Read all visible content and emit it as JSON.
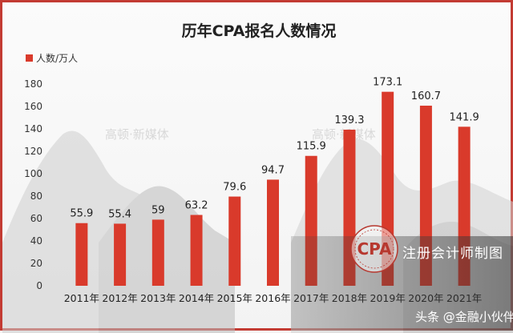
{
  "chart_data": {
    "type": "bar",
    "title": "历年CPA报名人数情况",
    "categories": [
      "2011年",
      "2012年",
      "2013年",
      "2014年",
      "2015年",
      "2016年",
      "2017年",
      "2018年",
      "2019年",
      "2020年",
      "2021年"
    ],
    "series": [
      {
        "name": "人数/万人",
        "values": [
          55.9,
          55.4,
          59,
          63.2,
          79.6,
          94.7,
          115.9,
          139.3,
          173.1,
          160.7,
          141.9
        ]
      }
    ],
    "value_labels": [
      "55.9",
      "55.4",
      "59",
      "63.2",
      "79.6",
      "94.7",
      "115.9",
      "139.3",
      "173.1",
      "160.7",
      "141.9"
    ],
    "ylim": [
      0,
      180
    ],
    "yticks": [
      "0",
      "20",
      "40",
      "60",
      "80",
      "100",
      "120",
      "140",
      "160",
      "180"
    ],
    "grid": false,
    "legend_position": "top-left",
    "bar_color": "#d93a2b"
  },
  "overlay": {
    "seal_text": "CPA",
    "caption": "注册会计师制图",
    "credit": "头条 @金融小伙伴",
    "watermark": "高顿·新媒体"
  }
}
